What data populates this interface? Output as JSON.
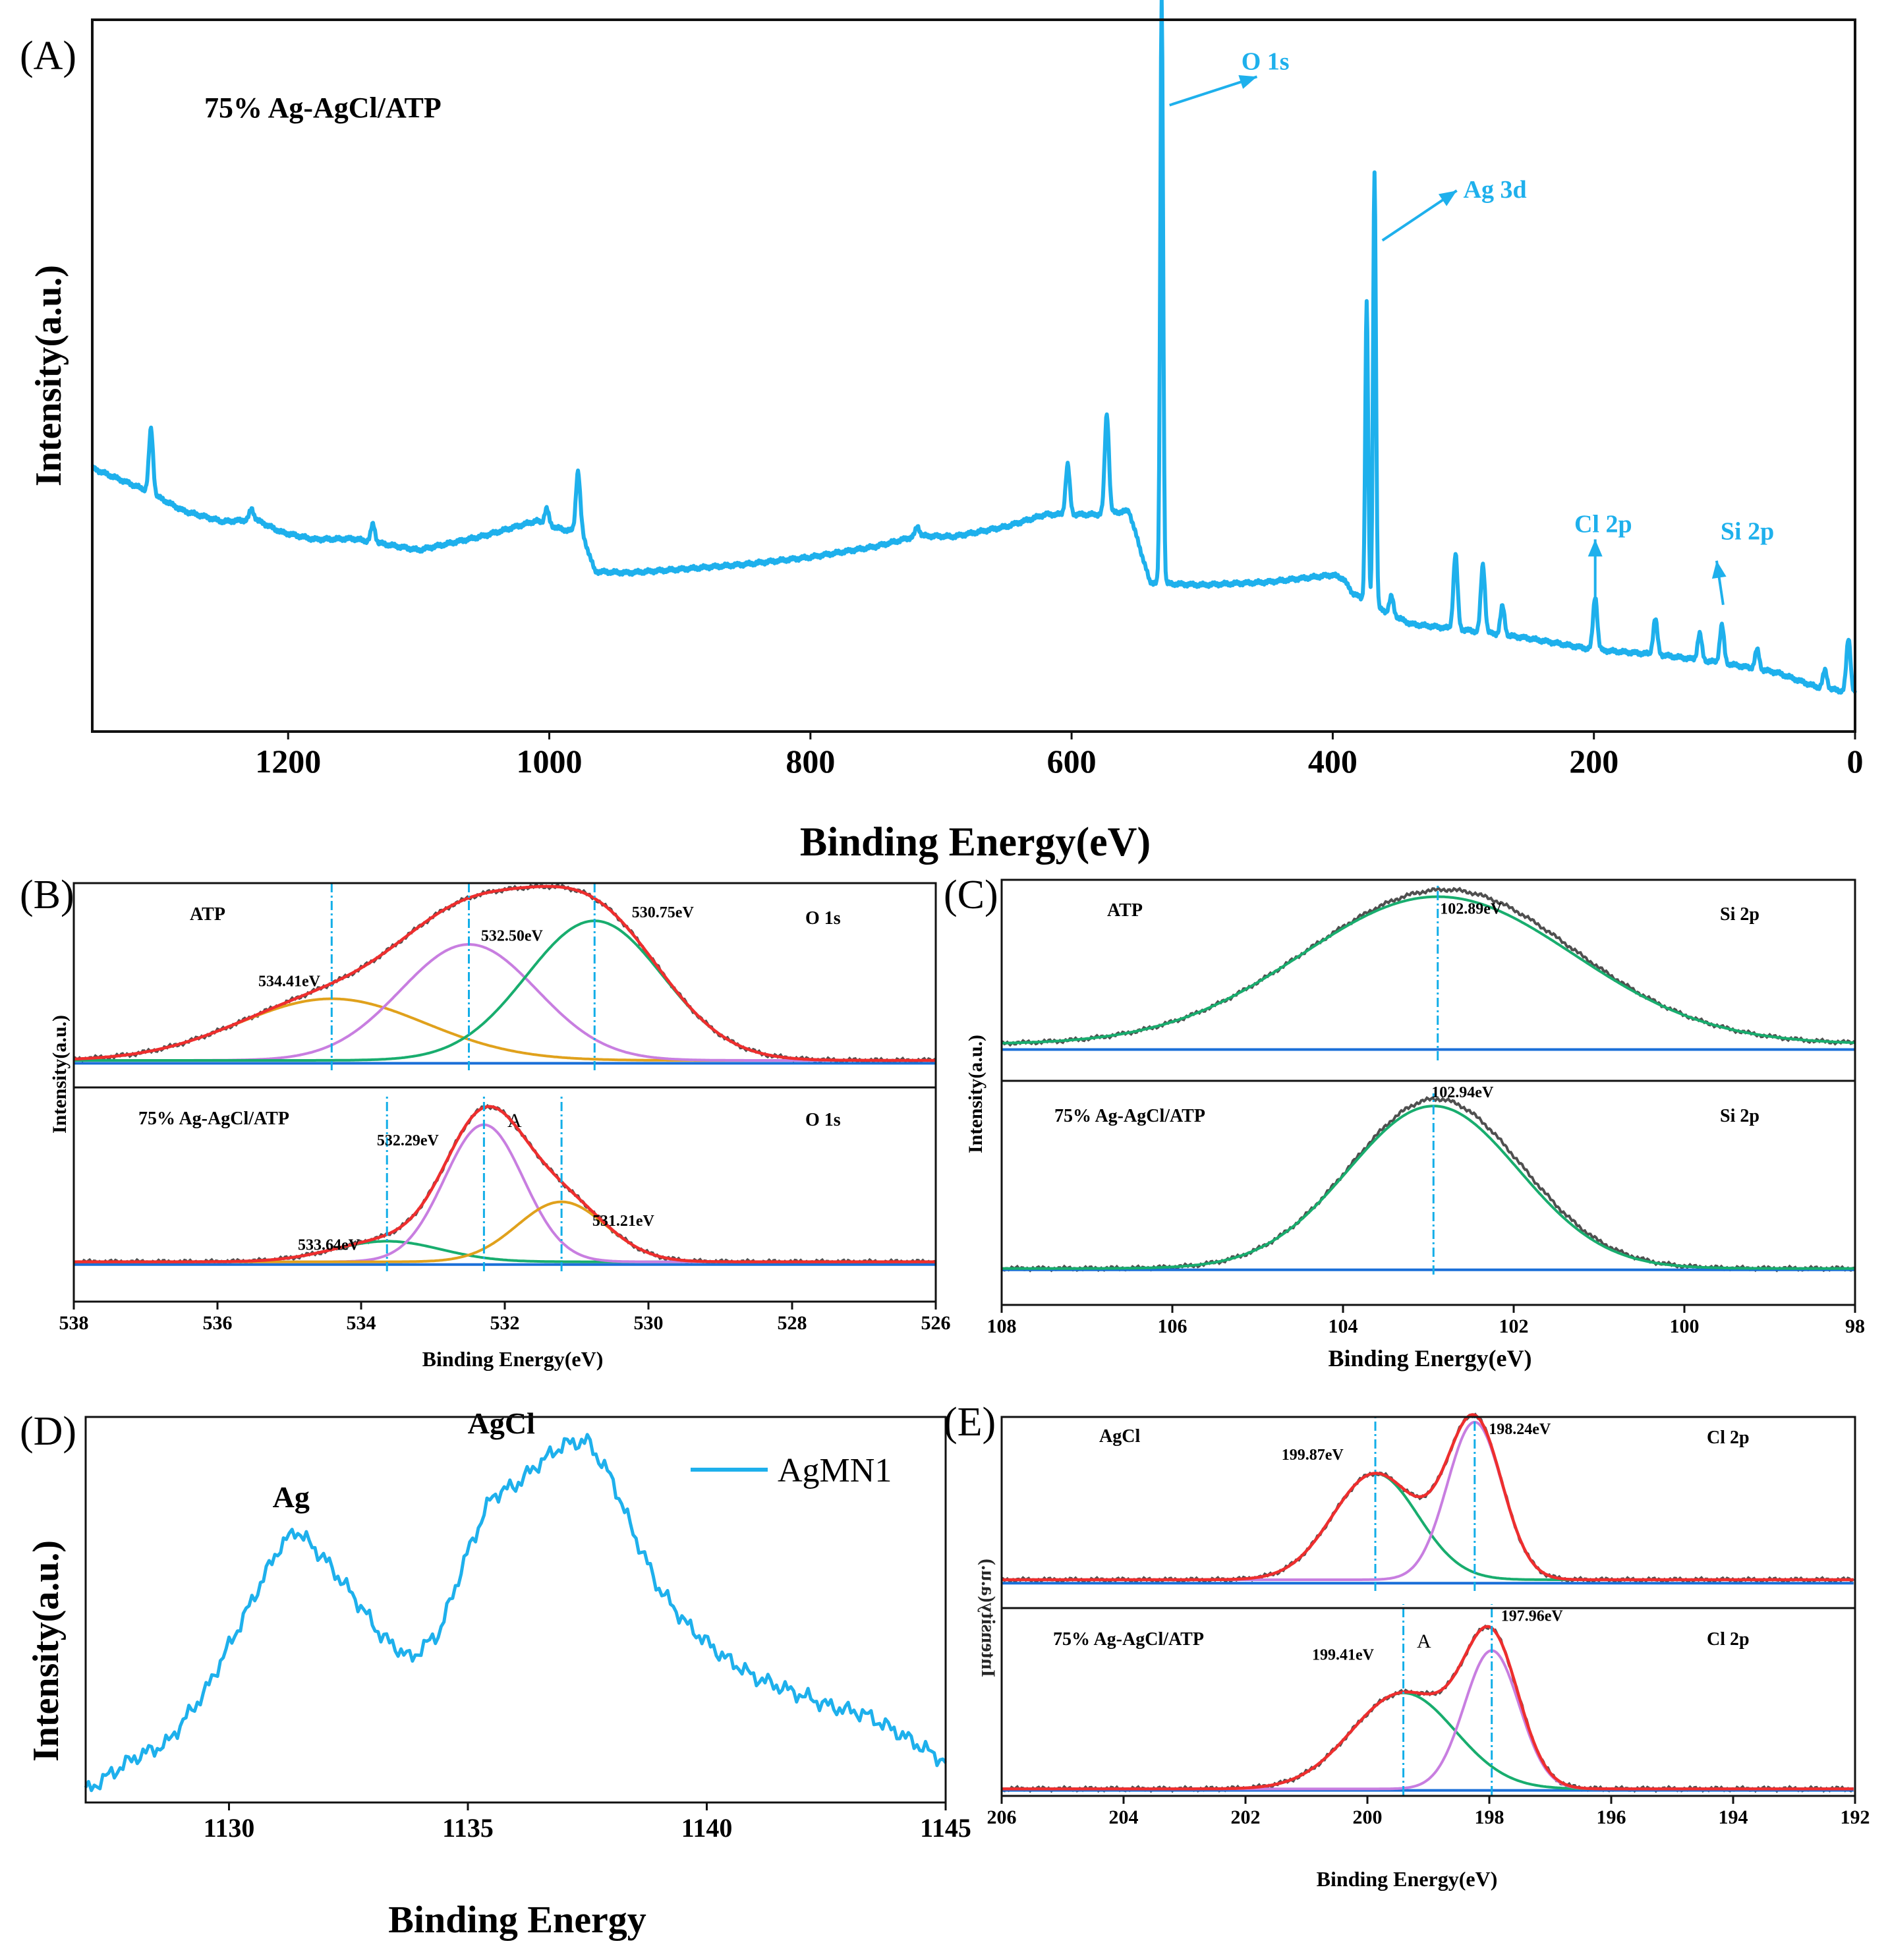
{
  "figure": {
    "colors": {
      "cyan": "#1eb0ec",
      "dash": "#12aee8",
      "raw": "#4f4f4f",
      "red": "#ee2e2e",
      "violet": "#c87ee0",
      "green": "#18ad6e",
      "orange": "#e0a11c",
      "blue": "#1a6fd8",
      "text": "#1a1a1a"
    }
  },
  "chart_data": [
    {
      "id": "A",
      "panel_label": "(A)",
      "type": "line",
      "title": "75% Ag-AgCl/ATP",
      "xlabel": "Binding Energy(eV)",
      "ylabel": "Intensity(a.u.)",
      "xlim": [
        1350,
        0
      ],
      "ylim": [
        0,
        100
      ],
      "xticks": [
        1200,
        1000,
        800,
        600,
        400,
        200,
        0
      ],
      "xtick_labels": [
        "1200",
        "1000",
        "800",
        "600",
        "400",
        "200",
        "0"
      ],
      "baseline": [
        [
          1350,
          37
        ],
        [
          1310,
          34
        ],
        [
          1280,
          31
        ],
        [
          1250,
          29.5
        ],
        [
          1225,
          29.8
        ],
        [
          1205,
          28
        ],
        [
          1180,
          27
        ],
        [
          1150,
          27.1
        ],
        [
          1100,
          25.5
        ],
        [
          1050,
          27.5
        ],
        [
          1010,
          29.6
        ],
        [
          990,
          28.4
        ],
        [
          975,
          28
        ],
        [
          965,
          22.5
        ],
        [
          940,
          22.3
        ],
        [
          900,
          22.8
        ],
        [
          850,
          23.5
        ],
        [
          800,
          24.5
        ],
        [
          750,
          26
        ],
        [
          718,
          27.5
        ],
        [
          690,
          27.4
        ],
        [
          650,
          28.8
        ],
        [
          620,
          30.5
        ],
        [
          580,
          30.5
        ],
        [
          556,
          31
        ],
        [
          540,
          21
        ],
        [
          530,
          20.8
        ],
        [
          500,
          20.6
        ],
        [
          450,
          21
        ],
        [
          400,
          22
        ],
        [
          392,
          21.5
        ],
        [
          385,
          19.5
        ],
        [
          370,
          17.8
        ],
        [
          340,
          15.1
        ],
        [
          300,
          14.3
        ],
        [
          250,
          13.1
        ],
        [
          200,
          11.5
        ],
        [
          150,
          10.8
        ],
        [
          100,
          9.6
        ],
        [
          60,
          8.3
        ],
        [
          30,
          6.3
        ],
        [
          0,
          5.4
        ]
      ],
      "peaks": [
        {
          "x": 1305,
          "h": 9
        },
        {
          "x": 1228,
          "h": 1.5
        },
        {
          "x": 1135,
          "h": 2.5
        },
        {
          "x": 1002,
          "h": 2.2
        },
        {
          "x": 978,
          "h": 8.5
        },
        {
          "x": 718,
          "h": 1.3
        },
        {
          "x": 603,
          "h": 7
        },
        {
          "x": 573,
          "h": 14
        },
        {
          "x": 531,
          "h": 82
        },
        {
          "x": 374,
          "h": 42
        },
        {
          "x": 368,
          "h": 61
        },
        {
          "x": 355,
          "h": 2.5
        },
        {
          "x": 306,
          "h": 10.5
        },
        {
          "x": 285,
          "h": 9.5
        },
        {
          "x": 270,
          "h": 4
        },
        {
          "x": 199,
          "h": 7.5
        },
        {
          "x": 153,
          "h": 5
        },
        {
          "x": 119,
          "h": 3.7
        },
        {
          "x": 102,
          "h": 5.3
        },
        {
          "x": 75,
          "h": 2.7
        },
        {
          "x": 23,
          "h": 2.5
        },
        {
          "x": 5,
          "h": 7.5
        }
      ],
      "annotations": [
        {
          "label": "O 1s",
          "x": 470,
          "y": 93,
          "arrow_from": [
            525,
            88
          ],
          "arrow_to": [
            458,
            92
          ]
        },
        {
          "label": "Ag 3d",
          "x": 300,
          "y": 75,
          "arrow_from": [
            362,
            69
          ],
          "arrow_to": [
            305,
            76
          ]
        },
        {
          "label": "Cl 2p",
          "x": 215,
          "y": 28,
          "arrow_from": [
            199,
            18
          ],
          "arrow_to": [
            199,
            27
          ]
        },
        {
          "label": "Si 2p",
          "x": 103,
          "y": 27,
          "arrow_from": [
            101,
            17.8
          ],
          "arrow_to": [
            106,
            24
          ]
        }
      ]
    },
    {
      "id": "B",
      "panel_label": "(B)",
      "type": "line",
      "xlabel": "Binding Energy(eV)",
      "ylabel": "Intensity(a.u.)",
      "xlim": [
        538,
        526
      ],
      "ylim": [
        0,
        1
      ],
      "xticks": [
        538,
        536,
        534,
        532,
        530,
        528,
        526
      ],
      "xtick_labels": [
        "538",
        "536",
        "534",
        "532",
        "530",
        "528",
        "526"
      ],
      "subplots": [
        {
          "sample": "ATP",
          "element": "O 1s",
          "components": [
            {
              "name": "534.41eV",
              "center": 534.41,
              "amp": 0.34,
              "sigma": 1.3,
              "color": "orange"
            },
            {
              "name": "532.50eV",
              "center": 532.5,
              "amp": 0.64,
              "sigma": 0.95,
              "color": "violet"
            },
            {
              "name": "530.75eV",
              "center": 530.75,
              "amp": 0.77,
              "sigma": 0.95,
              "color": "green"
            }
          ],
          "envelope": "red",
          "background": 0.04,
          "peak_labels": [
            {
              "text": "534.41eV",
              "x": 535.0,
              "y": 0.45
            },
            {
              "text": "532.50eV",
              "x": 531.9,
              "y": 0.7
            },
            {
              "text": "530.75eV",
              "x": 529.8,
              "y": 0.83
            }
          ],
          "dash_lines": [
            534.41,
            532.5,
            530.75
          ]
        },
        {
          "sample": "75% Ag-AgCl/ATP",
          "element": "O 1s",
          "components": [
            {
              "name": "533.64eV",
              "center": 533.64,
              "amp": 0.12,
              "sigma": 0.75,
              "color": "green"
            },
            {
              "name": "532.29eV",
              "center": 532.29,
              "amp": 0.8,
              "sigma": 0.55,
              "color": "violet"
            },
            {
              "name": "531.21eV",
              "center": 531.21,
              "amp": 0.35,
              "sigma": 0.62,
              "color": "orange"
            }
          ],
          "envelope": "red",
          "background": 0.04,
          "marker": "A",
          "peak_labels": [
            {
              "text": "532.29eV",
              "x": 533.35,
              "y": 0.72
            },
            {
              "text": "533.64eV",
              "x": 534.45,
              "y": 0.11
            },
            {
              "text": "531.21eV",
              "x": 530.35,
              "y": 0.25
            }
          ],
          "dash_lines": [
            533.64,
            532.29,
            531.21
          ]
        }
      ]
    },
    {
      "id": "C",
      "panel_label": "(C)",
      "type": "line",
      "xlabel": "Binding Energy(eV)",
      "ylabel": "Intensity(a.u.)",
      "xlim": [
        108,
        98
      ],
      "ylim": [
        0,
        1
      ],
      "xticks": [
        108,
        106,
        104,
        102,
        100,
        98
      ],
      "xtick_labels": [
        "108",
        "106",
        "104",
        "102",
        "100",
        "98"
      ],
      "subplots": [
        {
          "sample": "ATP",
          "element": "Si 2p",
          "center": 102.89,
          "amp": 0.86,
          "sigma": 1.6,
          "background": 0.08,
          "peak_label": {
            "text": "102.89eV",
            "x": 102.5,
            "y": 0.84
          },
          "dash_line": 102.89
        },
        {
          "sample": "75% Ag-AgCl/ATP",
          "element": "Si 2p",
          "center": 102.94,
          "amp": 0.93,
          "sigma": 1.0,
          "background": 0.02,
          "peak_label": {
            "text": "102.94eV",
            "x": 102.6,
            "y": 1.0
          },
          "dash_line": 102.94
        }
      ]
    },
    {
      "id": "D",
      "panel_label": "(D)",
      "type": "line",
      "xlabel": "Binding Energy",
      "ylabel": "Intensity(a.u.)",
      "xlim": [
        1127,
        1145
      ],
      "ylim": [
        0,
        1
      ],
      "xticks": [
        1130,
        1135,
        1140,
        1145
      ],
      "xtick_labels": [
        "1130",
        "1135",
        "1140",
        "1145"
      ],
      "legend": "AgMN1",
      "series_points": [
        [
          1127,
          0.03
        ],
        [
          1128,
          0.12
        ],
        [
          1128.7,
          0.16
        ],
        [
          1129.5,
          0.3
        ],
        [
          1130.3,
          0.5
        ],
        [
          1131,
          0.68
        ],
        [
          1131.4,
          0.74
        ],
        [
          1132,
          0.66
        ],
        [
          1132.6,
          0.56
        ],
        [
          1133.2,
          0.45
        ],
        [
          1133.8,
          0.39
        ],
        [
          1134.4,
          0.46
        ],
        [
          1135,
          0.68
        ],
        [
          1135.5,
          0.83
        ],
        [
          1136,
          0.86
        ],
        [
          1136.5,
          0.92
        ],
        [
          1137,
          0.97
        ],
        [
          1137.5,
          0.98
        ],
        [
          1138,
          0.88
        ],
        [
          1138.5,
          0.72
        ],
        [
          1139,
          0.58
        ],
        [
          1139.6,
          0.48
        ],
        [
          1140.3,
          0.4
        ],
        [
          1141,
          0.34
        ],
        [
          1141.8,
          0.3
        ],
        [
          1142.6,
          0.26
        ],
        [
          1143.3,
          0.24
        ],
        [
          1144,
          0.19
        ],
        [
          1145,
          0.11
        ]
      ],
      "annotations": [
        {
          "text": "Ag",
          "x": 1131.3,
          "y": 0.8
        },
        {
          "text": "AgCl",
          "x": 1135.7,
          "y": 1.0
        }
      ]
    },
    {
      "id": "E",
      "panel_label": "(E)",
      "type": "line",
      "xlabel": "Binding Energy(eV)",
      "ylabel": "Intensity(a.u.)",
      "xlim": [
        206,
        192
      ],
      "ylim": [
        0,
        1
      ],
      "xticks": [
        206,
        204,
        202,
        200,
        198,
        196,
        194,
        192
      ],
      "xtick_labels": [
        "206",
        "204",
        "202",
        "200",
        "198",
        "196",
        "194",
        "192"
      ],
      "subplots": [
        {
          "sample": "AgCl",
          "element": "Cl 2p",
          "components": [
            {
              "name": "199.87eV",
              "center": 199.87,
              "amp": 0.62,
              "sigma": 0.7,
              "color": "green"
            },
            {
              "name": "198.24eV",
              "center": 198.24,
              "amp": 0.92,
              "sigma": 0.45,
              "color": "violet"
            }
          ],
          "background": 0.05,
          "peak_labels": [
            {
              "text": "199.87eV",
              "x": 200.9,
              "y": 0.75
            },
            {
              "text": "198.24eV",
              "x": 197.5,
              "y": 0.9
            }
          ],
          "dash_lines": [
            199.87,
            198.24
          ]
        },
        {
          "sample": "75% Ag-AgCl/ATP",
          "element": "Cl 2p",
          "components": [
            {
              "name": "199.41eV",
              "center": 199.41,
              "amp": 0.52,
              "sigma": 0.85,
              "color": "green"
            },
            {
              "name": "197.96eV",
              "center": 197.96,
              "amp": 0.75,
              "sigma": 0.45,
              "color": "violet"
            }
          ],
          "background": 0.02,
          "marker": "A",
          "peak_labels": [
            {
              "text": "199.41eV",
              "x": 200.4,
              "y": 0.72
            },
            {
              "text": "197.96eV",
              "x": 197.3,
              "y": 0.93
            }
          ],
          "dash_lines": [
            199.41,
            197.96
          ]
        }
      ]
    }
  ]
}
